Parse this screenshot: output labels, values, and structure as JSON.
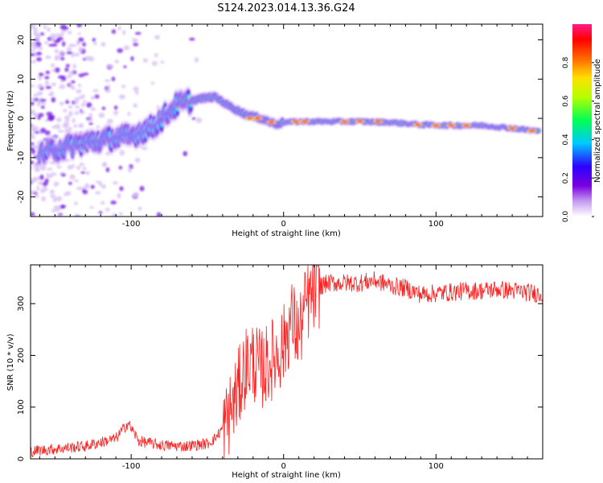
{
  "title": "S124.2023.014.13.36.G24",
  "chart_data": [
    {
      "type": "heatmap",
      "xlabel": "Height of straight line (km)",
      "ylabel": "Frequency (Hz)",
      "xlim": [
        -166,
        170
      ],
      "ylim": [
        -25,
        24
      ],
      "xticks": [
        -100,
        0,
        100
      ],
      "yticks": [
        -20,
        -10,
        0,
        10,
        20
      ],
      "colorbar": {
        "label": "Normalized spectral amplitude",
        "range": [
          0.0,
          1.0
        ],
        "ticks": [
          0.0,
          0.2,
          0.4,
          0.6,
          0.8
        ],
        "colors": [
          "#ffffff",
          "#9400d3",
          "#2d00ff",
          "#00ffff",
          "#00ff00",
          "#ffff00",
          "#ff6600",
          "#ff0000",
          "#ff1493"
        ]
      },
      "ridge_center_frequency": {
        "x": [
          -160,
          -140,
          -120,
          -100,
          -85,
          -70,
          -55,
          -45,
          -35,
          -25,
          -15,
          -5,
          0,
          10,
          30,
          50,
          70,
          90,
          110,
          130,
          150,
          168
        ],
        "y": [
          -9,
          -7,
          -5.5,
          -4.5,
          -2,
          3.5,
          5,
          5.5,
          3,
          1,
          0,
          -1.5,
          -1,
          -0.8,
          -0.8,
          -0.8,
          -1.0,
          -1.6,
          -1.8,
          -1.8,
          -2.5,
          -3.3
        ]
      }
    },
    {
      "type": "line",
      "xlabel": "Height of straight line (km)",
      "ylabel": "SNR (10 * v/v)",
      "xlim": [
        -166,
        170
      ],
      "ylim": [
        0,
        375
      ],
      "xticks": [
        -100,
        0,
        100
      ],
      "yticks": [
        0,
        100,
        200,
        300
      ],
      "line_color": "#ff2020",
      "series": [
        {
          "x": [
            -166,
            -150,
            -130,
            -110,
            -102,
            -95,
            -80,
            -65,
            -50,
            -45,
            -40,
            -35,
            -30,
            -25,
            -20,
            -15,
            -10,
            -5,
            0,
            5,
            10,
            15,
            20,
            25,
            30,
            40,
            50,
            60,
            70,
            80,
            90,
            100,
            110,
            120,
            130,
            140,
            150,
            160,
            170
          ],
          "y": [
            10,
            15,
            20,
            35,
            65,
            30,
            22,
            20,
            25,
            35,
            55,
            90,
            130,
            180,
            190,
            170,
            185,
            200,
            220,
            270,
            240,
            300,
            320,
            335,
            340,
            340,
            340,
            345,
            335,
            330,
            318,
            320,
            322,
            325,
            325,
            328,
            325,
            322,
            318
          ]
        }
      ]
    }
  ]
}
